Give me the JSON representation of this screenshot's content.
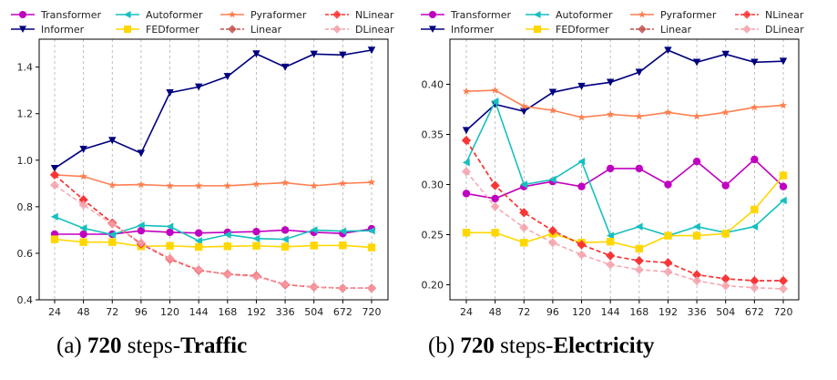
{
  "legend": [
    "Transformer",
    "Autoformer",
    "Pyraformer",
    "NLinear",
    "Informer",
    "FEDformer",
    "Linear",
    "DLinear"
  ],
  "series_styles": {
    "Transformer": {
      "color": "#c000c0",
      "marker": "circle",
      "dashed": false
    },
    "Informer": {
      "color": "#00007f",
      "marker": "triangle-down",
      "dashed": false
    },
    "Autoformer": {
      "color": "#17bfbf",
      "marker": "triangle-left",
      "dashed": false
    },
    "FEDformer": {
      "color": "#ffd700",
      "marker": "square",
      "dashed": false
    },
    "Pyraformer": {
      "color": "#ff7f50",
      "marker": "star",
      "dashed": false
    },
    "Linear": {
      "color": "#c0504d",
      "marker": "diamond",
      "dashed": true
    },
    "NLinear": {
      "color": "#ff3030",
      "marker": "diamond",
      "dashed": true
    },
    "DLinear": {
      "color": "#f4a0aa",
      "marker": "diamond",
      "dashed": true
    }
  },
  "captions": [
    {
      "prefix": "(a) ",
      "bold1": "720",
      "mid": " steps-",
      "bold2": "Traffic"
    },
    {
      "prefix": "(b) ",
      "bold1": "720",
      "mid": " steps-",
      "bold2": "Electricity"
    }
  ],
  "chart_data": [
    {
      "type": "line",
      "title": "(a) 720 steps-Traffic",
      "xlabel": "",
      "ylabel": "",
      "categories": [
        "24",
        "48",
        "72",
        "96",
        "120",
        "144",
        "168",
        "192",
        "336",
        "504",
        "672",
        "720"
      ],
      "ylim": [
        0.4,
        1.52
      ],
      "yticks": [
        "0.4",
        "0.6",
        "0.8",
        "1.0",
        "1.2",
        "1.4"
      ],
      "ytick_values": [
        0.4,
        0.6,
        0.8,
        1.0,
        1.2,
        1.4
      ],
      "grid": "vertical-dashed",
      "legend_position": "top",
      "series": [
        {
          "name": "Transformer",
          "values": [
            0.682,
            0.682,
            0.682,
            0.697,
            0.69,
            0.687,
            0.69,
            0.693,
            0.7,
            0.69,
            0.685,
            0.705
          ]
        },
        {
          "name": "Informer",
          "values": [
            0.965,
            1.047,
            1.085,
            1.03,
            1.29,
            1.315,
            1.36,
            1.457,
            1.4,
            1.456,
            1.452,
            1.473
          ]
        },
        {
          "name": "Autoformer",
          "values": [
            0.757,
            0.708,
            0.68,
            0.72,
            0.715,
            0.653,
            0.68,
            0.663,
            0.66,
            0.7,
            0.695,
            0.697
          ]
        },
        {
          "name": "FEDformer",
          "values": [
            0.66,
            0.648,
            0.648,
            0.63,
            0.632,
            0.627,
            0.63,
            0.632,
            0.628,
            0.633,
            0.634,
            0.625
          ]
        },
        {
          "name": "Pyraformer",
          "values": [
            0.937,
            0.93,
            0.893,
            0.895,
            0.89,
            0.89,
            0.89,
            0.897,
            0.903,
            0.89,
            0.9,
            0.905
          ]
        },
        {
          "name": "Linear",
          "values": [
            0.937,
            0.83,
            0.73,
            0.64,
            0.575,
            0.527,
            0.51,
            0.503,
            0.465,
            0.455,
            0.45,
            0.45
          ]
        },
        {
          "name": "NLinear",
          "values": [
            0.937,
            0.83,
            0.73,
            0.64,
            0.575,
            0.527,
            0.51,
            0.503,
            0.465,
            0.455,
            0.45,
            0.45
          ]
        },
        {
          "name": "DLinear",
          "values": [
            0.893,
            0.808,
            0.725,
            0.645,
            0.578,
            0.53,
            0.508,
            0.5,
            0.467,
            0.455,
            0.45,
            0.45
          ]
        }
      ]
    },
    {
      "type": "line",
      "title": "(b) 720 steps-Electricity",
      "xlabel": "",
      "ylabel": "",
      "categories": [
        "24",
        "48",
        "72",
        "96",
        "120",
        "144",
        "168",
        "192",
        "336",
        "504",
        "672",
        "720"
      ],
      "ylim": [
        0.185,
        0.445
      ],
      "yticks": [
        "0.20",
        "0.25",
        "0.30",
        "0.35",
        "0.40"
      ],
      "ytick_values": [
        0.2,
        0.25,
        0.3,
        0.35,
        0.4
      ],
      "grid": "vertical-dashed",
      "legend_position": "top",
      "series": [
        {
          "name": "Transformer",
          "values": [
            0.291,
            0.286,
            0.298,
            0.303,
            0.298,
            0.316,
            0.316,
            0.3,
            0.323,
            0.299,
            0.325,
            0.298
          ]
        },
        {
          "name": "Informer",
          "values": [
            0.354,
            0.38,
            0.373,
            0.392,
            0.398,
            0.402,
            0.412,
            0.434,
            0.422,
            0.43,
            0.422,
            0.423
          ]
        },
        {
          "name": "Autoformer",
          "values": [
            0.322,
            0.383,
            0.3,
            0.305,
            0.323,
            0.249,
            0.258,
            0.249,
            0.258,
            0.252,
            0.258,
            0.284
          ]
        },
        {
          "name": "FEDformer",
          "values": [
            0.252,
            0.252,
            0.242,
            0.251,
            0.242,
            0.243,
            0.236,
            0.249,
            0.249,
            0.251,
            0.275,
            0.309
          ]
        },
        {
          "name": "Pyraformer",
          "values": [
            0.393,
            0.394,
            0.378,
            0.374,
            0.367,
            0.37,
            0.368,
            0.372,
            0.368,
            0.372,
            0.377,
            0.379
          ]
        },
        {
          "name": "Linear",
          "values": [
            0.344,
            0.299,
            0.272,
            0.254,
            0.24,
            0.229,
            0.224,
            0.222,
            0.21,
            0.206,
            0.204,
            0.204
          ]
        },
        {
          "name": "NLinear",
          "values": [
            0.344,
            0.299,
            0.272,
            0.254,
            0.24,
            0.229,
            0.224,
            0.222,
            0.21,
            0.206,
            0.204,
            0.204
          ]
        },
        {
          "name": "DLinear",
          "values": [
            0.313,
            0.278,
            0.257,
            0.242,
            0.23,
            0.22,
            0.215,
            0.213,
            0.204,
            0.199,
            0.197,
            0.196
          ]
        }
      ]
    }
  ]
}
